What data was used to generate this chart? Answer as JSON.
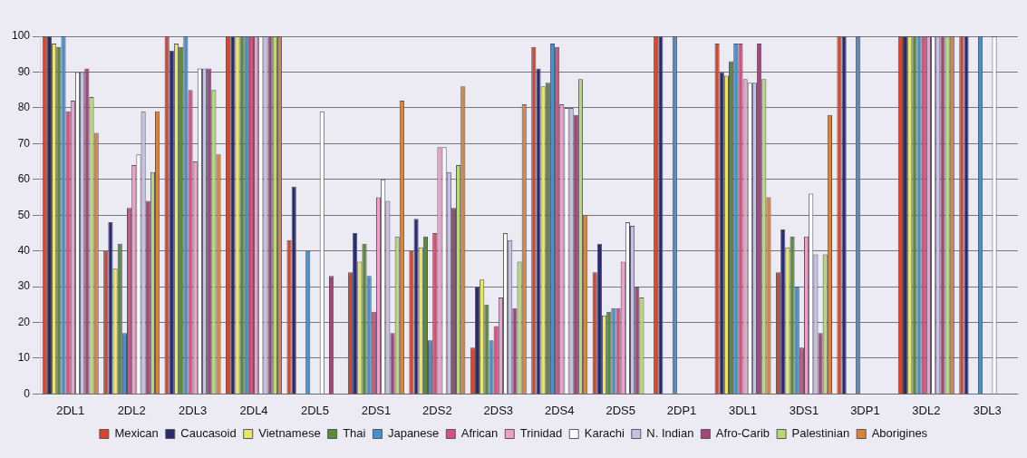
{
  "chart_data": {
    "type": "bar",
    "categories": [
      "2DL1",
      "2DL2",
      "2DL3",
      "2DL4",
      "2DL5",
      "2DS1",
      "2DS2",
      "2DS3",
      "2DS4",
      "2DS5",
      "2DP1",
      "3DL1",
      "3DS1",
      "3DP1",
      "3DL2",
      "3DL3"
    ],
    "ylim": [
      0,
      100
    ],
    "yticks": [
      0,
      10,
      20,
      30,
      40,
      50,
      60,
      70,
      80,
      90,
      100
    ],
    "grid": "y",
    "legend": "bottom",
    "series": [
      {
        "name": "Mexican",
        "color": "#d9452b",
        "values": [
          100,
          40,
          100,
          100,
          43,
          34,
          40,
          13,
          97,
          34,
          100,
          98,
          34,
          100,
          100,
          100
        ]
      },
      {
        "name": "Caucasoid",
        "color": "#2a2a72",
        "values": [
          100,
          48,
          96,
          100,
          58,
          45,
          49,
          30,
          91,
          42,
          100,
          90,
          46,
          100,
          100,
          100
        ]
      },
      {
        "name": "Vietnamese",
        "color": "#e8e85a",
        "values": [
          98,
          35,
          98,
          100,
          0,
          37,
          41,
          32,
          86,
          22,
          0,
          89,
          41,
          0,
          100,
          0
        ]
      },
      {
        "name": "Thai",
        "color": "#5a8a3a",
        "values": [
          97,
          42,
          97,
          100,
          0,
          42,
          44,
          25,
          87,
          23,
          0,
          93,
          44,
          0,
          100,
          0
        ]
      },
      {
        "name": "Japanese",
        "color": "#4a90c8",
        "values": [
          100,
          17,
          100,
          100,
          40,
          33,
          15,
          15,
          98,
          24,
          100,
          98,
          30,
          100,
          100,
          100
        ]
      },
      {
        "name": "African",
        "color": "#d9507a",
        "values": [
          79,
          52,
          85,
          100,
          0,
          23,
          45,
          19,
          97,
          24,
          0,
          98,
          13,
          0,
          100,
          0
        ]
      },
      {
        "name": "Trinidad",
        "color": "#f0a0c8",
        "values": [
          82,
          64,
          65,
          100,
          0,
          55,
          69,
          27,
          81,
          37,
          0,
          88,
          44,
          0,
          100,
          0
        ]
      },
      {
        "name": "Karachi",
        "color": "#ffffff",
        "values": [
          90,
          67,
          91,
          100,
          79,
          60,
          69,
          45,
          80,
          48,
          0,
          87,
          56,
          0,
          100,
          100
        ]
      },
      {
        "name": "N. Indian",
        "color": "#c8c0e0",
        "values": [
          90,
          79,
          91,
          100,
          0,
          54,
          62,
          43,
          80,
          47,
          0,
          87,
          39,
          0,
          100,
          0
        ]
      },
      {
        "name": "Afro-Carib",
        "color": "#a04878",
        "values": [
          91,
          54,
          91,
          100,
          33,
          17,
          52,
          24,
          78,
          30,
          0,
          98,
          17,
          0,
          100,
          0
        ]
      },
      {
        "name": "Palestinian",
        "color": "#b8d870",
        "values": [
          83,
          62,
          85,
          100,
          0,
          44,
          64,
          37,
          88,
          27,
          0,
          88,
          39,
          0,
          100,
          0
        ]
      },
      {
        "name": "Aborigines",
        "color": "#d8843a",
        "values": [
          73,
          79,
          67,
          100,
          0,
          82,
          86,
          81,
          50,
          0,
          0,
          55,
          78,
          0,
          100,
          0
        ]
      }
    ]
  }
}
